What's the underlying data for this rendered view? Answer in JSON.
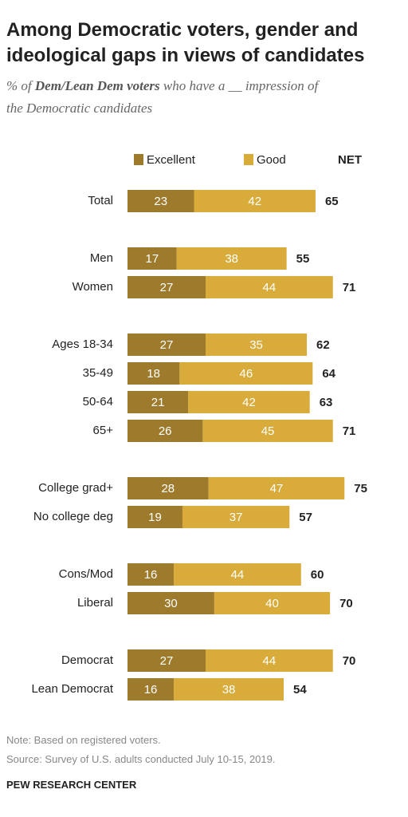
{
  "chart_data": {
    "type": "stacked-bar",
    "title": "Among Democratic voters, gender and ideological gaps in views of candidates",
    "subtitle": [
      "% of ",
      "Dem/Lean Dem voters",
      " who have a __ impression of the Democratic candidates"
    ],
    "categories": [
      "Total",
      "Men",
      "Women",
      "Ages 18-34",
      "35-49",
      "50-64",
      "65+",
      "College grad+",
      "No college deg",
      "Cons/Mod",
      "Liberal",
      "Democrat",
      "Lean Democrat"
    ],
    "series": [
      {
        "name": "Excellent",
        "color": "#9e7a2c",
        "values": [
          23,
          17,
          27,
          27,
          18,
          21,
          26,
          28,
          19,
          16,
          30,
          27,
          16
        ]
      },
      {
        "name": "Good",
        "color": "#d8ab3b",
        "values": [
          42,
          38,
          44,
          35,
          46,
          42,
          45,
          47,
          37,
          44,
          40,
          44,
          38
        ]
      }
    ],
    "net_label": "NET",
    "net_values": [
      65,
      55,
      71,
      62,
      64,
      63,
      71,
      75,
      57,
      60,
      70,
      70,
      54
    ],
    "note": "Note: Based on registered voters.",
    "source": "Source: Survey of U.S. adults conducted July 10-15, 2019.",
    "credit": "PEW RESEARCH CENTER"
  }
}
